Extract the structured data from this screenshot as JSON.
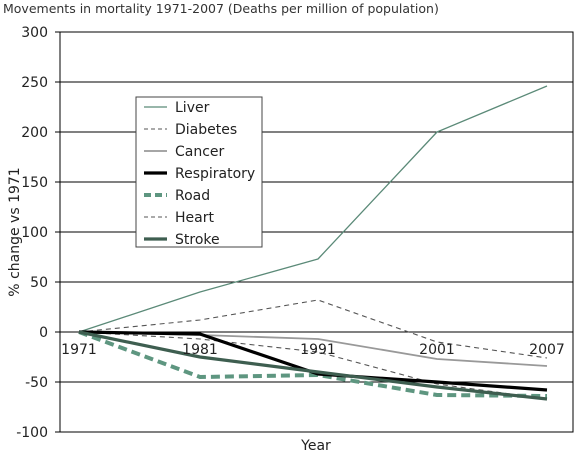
{
  "chart_data": {
    "type": "line",
    "title": "Movements in mortality 1971-2007 (Deaths per million of population)",
    "xlabel": "Year",
    "ylabel": "% change vs 1971",
    "x": [
      "1971",
      "1981",
      "1991",
      "2001",
      "2007"
    ],
    "ylim": [
      -100,
      300
    ],
    "yticks": [
      300,
      250,
      200,
      150,
      100,
      50,
      0,
      -50,
      -100
    ],
    "grid": "horizontal",
    "legend_position": "left-middle",
    "series": [
      {
        "name": "Liver",
        "values": [
          0,
          40,
          73,
          200,
          246
        ],
        "color": "#5b8a78",
        "style": "solid-thin"
      },
      {
        "name": "Diabetes",
        "values": [
          0,
          12,
          32,
          -10,
          -26
        ],
        "color": "#555555",
        "style": "dashed-thin"
      },
      {
        "name": "Cancer",
        "values": [
          0,
          -3,
          -7,
          -27,
          -34
        ],
        "color": "#999999",
        "style": "solid-medium"
      },
      {
        "name": "Respiratory",
        "values": [
          0,
          -2,
          -42,
          -50,
          -58
        ],
        "color": "#000000",
        "style": "solid-thick"
      },
      {
        "name": "Road",
        "values": [
          0,
          -45,
          -43,
          -63,
          -64
        ],
        "color": "#5e9680",
        "style": "dashed-thick"
      },
      {
        "name": "Heart",
        "values": [
          0,
          -7,
          -20,
          -52,
          -67
        ],
        "color": "#555555",
        "style": "dashed-thin"
      },
      {
        "name": "Stroke",
        "values": [
          0,
          -25,
          -40,
          -55,
          -67
        ],
        "color": "#3e5e50",
        "style": "solid-thick"
      }
    ]
  }
}
